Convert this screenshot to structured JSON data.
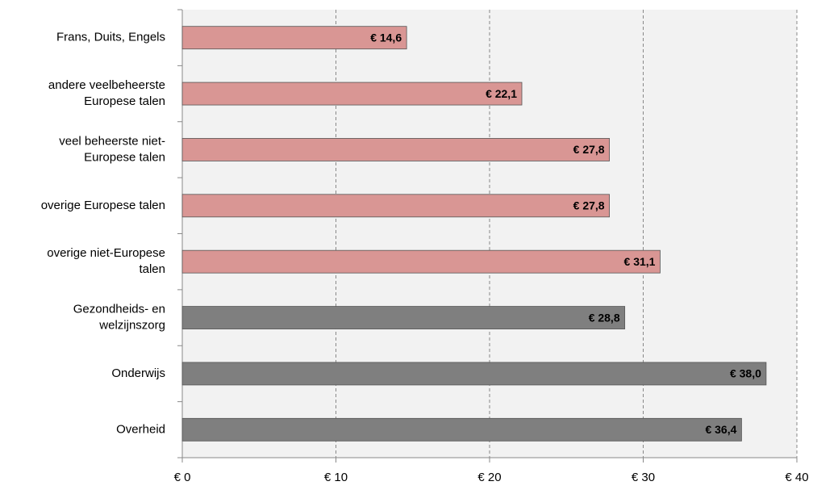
{
  "chart_data": {
    "type": "bar",
    "orientation": "horizontal",
    "categories": [
      "Frans, Duits, Engels",
      "andere veelbeheerste\nEuropese talen",
      "veel beheerste niet-\nEuropese talen",
      "overige Europese talen",
      "overige niet-Europese\ntalen",
      "Gezondheids- en\nwelzijnszorg",
      "Onderwijs",
      "Overheid"
    ],
    "values": [
      14.6,
      22.1,
      27.8,
      27.8,
      31.1,
      28.8,
      38.0,
      36.4
    ],
    "value_labels": [
      "€ 14,6",
      "€ 22,1",
      "€ 27,8",
      "€ 27,8",
      "€ 31,1",
      "€ 28,8",
      "€ 38,0",
      "€ 36,4"
    ],
    "colors": [
      "#d99694",
      "#d99694",
      "#d99694",
      "#d99694",
      "#d99694",
      "#7f7f7f",
      "#7f7f7f",
      "#7f7f7f"
    ],
    "xlim": [
      0,
      40
    ],
    "xticks": [
      {
        "value": 0,
        "label": "€ 0"
      },
      {
        "value": 10,
        "label": "€ 10"
      },
      {
        "value": 20,
        "label": "€ 20"
      },
      {
        "value": 30,
        "label": "€ 30"
      },
      {
        "value": 40,
        "label": "€ 40"
      }
    ],
    "grid": true
  }
}
